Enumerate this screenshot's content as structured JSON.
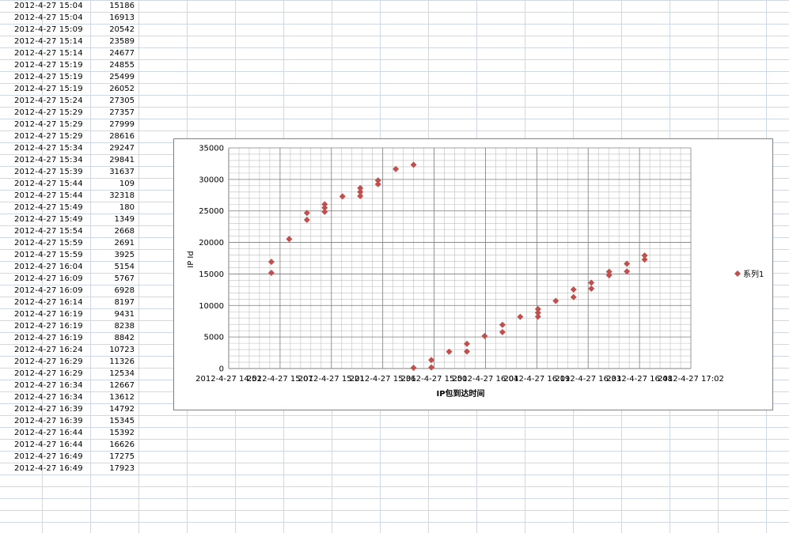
{
  "sheet": {
    "rows": [
      {
        "time": "2012-4-27 15:04",
        "value": "15186"
      },
      {
        "time": "2012-4-27 15:04",
        "value": "16913"
      },
      {
        "time": "2012-4-27 15:09",
        "value": "20542"
      },
      {
        "time": "2012-4-27 15:14",
        "value": "23589"
      },
      {
        "time": "2012-4-27 15:14",
        "value": "24677"
      },
      {
        "time": "2012-4-27 15:19",
        "value": "24855"
      },
      {
        "time": "2012-4-27 15:19",
        "value": "25499"
      },
      {
        "time": "2012-4-27 15:19",
        "value": "26052"
      },
      {
        "time": "2012-4-27 15:24",
        "value": "27305"
      },
      {
        "time": "2012-4-27 15:29",
        "value": "27357"
      },
      {
        "time": "2012-4-27 15:29",
        "value": "27999"
      },
      {
        "time": "2012-4-27 15:29",
        "value": "28616"
      },
      {
        "time": "2012-4-27 15:34",
        "value": "29247"
      },
      {
        "time": "2012-4-27 15:34",
        "value": "29841"
      },
      {
        "time": "2012-4-27 15:39",
        "value": "31637"
      },
      {
        "time": "2012-4-27 15:44",
        "value": "109"
      },
      {
        "time": "2012-4-27 15:44",
        "value": "32318"
      },
      {
        "time": "2012-4-27 15:49",
        "value": "180"
      },
      {
        "time": "2012-4-27 15:49",
        "value": "1349"
      },
      {
        "time": "2012-4-27 15:54",
        "value": "2668"
      },
      {
        "time": "2012-4-27 15:59",
        "value": "2691"
      },
      {
        "time": "2012-4-27 15:59",
        "value": "3925"
      },
      {
        "time": "2012-4-27 16:04",
        "value": "5154"
      },
      {
        "time": "2012-4-27 16:09",
        "value": "5767"
      },
      {
        "time": "2012-4-27 16:09",
        "value": "6928"
      },
      {
        "time": "2012-4-27 16:14",
        "value": "8197"
      },
      {
        "time": "2012-4-27 16:19",
        "value": "9431"
      },
      {
        "time": "2012-4-27 16:19",
        "value": "8238"
      },
      {
        "time": "2012-4-27 16:19",
        "value": "8842"
      },
      {
        "time": "2012-4-27 16:24",
        "value": "10723"
      },
      {
        "time": "2012-4-27 16:29",
        "value": "11326"
      },
      {
        "time": "2012-4-27 16:29",
        "value": "12534"
      },
      {
        "time": "2012-4-27 16:34",
        "value": "12667"
      },
      {
        "time": "2012-4-27 16:34",
        "value": "13612"
      },
      {
        "time": "2012-4-27 16:39",
        "value": "14792"
      },
      {
        "time": "2012-4-27 16:39",
        "value": "15345"
      },
      {
        "time": "2012-4-27 16:44",
        "value": "15392"
      },
      {
        "time": "2012-4-27 16:44",
        "value": "16626"
      },
      {
        "time": "2012-4-27 16:49",
        "value": "17275"
      },
      {
        "time": "2012-4-27 16:49",
        "value": "17923"
      }
    ]
  },
  "chart_data": {
    "type": "scatter",
    "title": "",
    "xlabel": "IP包到达时间",
    "ylabel": "IP Id",
    "x_tick_labels": [
      "2012-4-27 14:52",
      "2012-4-27 15:07",
      "2012-4-27 15:21",
      "2012-4-27 15:36",
      "2012-4-27 15:50",
      "2012-4-27 16:04",
      "2012-4-27 16:19",
      "2012-4-27 16:33",
      "2012-4-27 16:48",
      "2012-4-27 17:02"
    ],
    "xlim": [
      "2012-4-27 14:52",
      "2012-4-27 17:02"
    ],
    "ylim": [
      0,
      35000
    ],
    "y_ticks": [
      0,
      5000,
      10000,
      15000,
      20000,
      25000,
      30000,
      35000
    ],
    "grid": true,
    "legend_position": "right",
    "marker": "diamond",
    "color": "#c0504d",
    "series": [
      {
        "name": "系列1",
        "x": [
          "2012-4-27 15:04",
          "2012-4-27 15:04",
          "2012-4-27 15:09",
          "2012-4-27 15:14",
          "2012-4-27 15:14",
          "2012-4-27 15:19",
          "2012-4-27 15:19",
          "2012-4-27 15:19",
          "2012-4-27 15:24",
          "2012-4-27 15:29",
          "2012-4-27 15:29",
          "2012-4-27 15:29",
          "2012-4-27 15:34",
          "2012-4-27 15:34",
          "2012-4-27 15:39",
          "2012-4-27 15:44",
          "2012-4-27 15:44",
          "2012-4-27 15:49",
          "2012-4-27 15:49",
          "2012-4-27 15:54",
          "2012-4-27 15:59",
          "2012-4-27 15:59",
          "2012-4-27 16:04",
          "2012-4-27 16:09",
          "2012-4-27 16:09",
          "2012-4-27 16:14",
          "2012-4-27 16:19",
          "2012-4-27 16:19",
          "2012-4-27 16:19",
          "2012-4-27 16:24",
          "2012-4-27 16:29",
          "2012-4-27 16:29",
          "2012-4-27 16:34",
          "2012-4-27 16:34",
          "2012-4-27 16:39",
          "2012-4-27 16:39",
          "2012-4-27 16:44",
          "2012-4-27 16:44",
          "2012-4-27 16:49",
          "2012-4-27 16:49"
        ],
        "y": [
          15186,
          16913,
          20542,
          23589,
          24677,
          24855,
          25499,
          26052,
          27305,
          27357,
          27999,
          28616,
          29247,
          29841,
          31637,
          109,
          32318,
          180,
          1349,
          2668,
          2691,
          3925,
          5154,
          5767,
          6928,
          8197,
          9431,
          8238,
          8842,
          10723,
          11326,
          12534,
          12667,
          13612,
          14792,
          15345,
          15392,
          16626,
          17275,
          17923
        ]
      }
    ]
  }
}
